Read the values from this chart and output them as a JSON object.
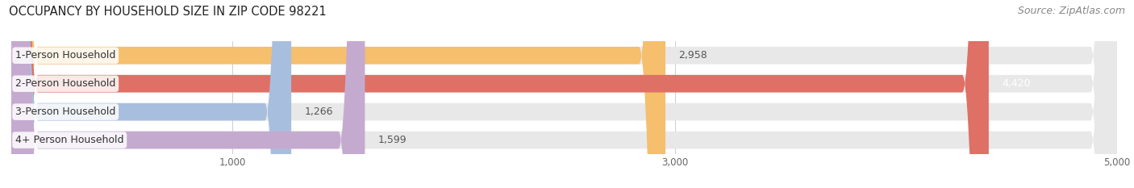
{
  "title": "OCCUPANCY BY HOUSEHOLD SIZE IN ZIP CODE 98221",
  "source": "Source: ZipAtlas.com",
  "categories": [
    "1-Person Household",
    "2-Person Household",
    "3-Person Household",
    "4+ Person Household"
  ],
  "values": [
    2958,
    4420,
    1266,
    1599
  ],
  "bar_colors": [
    "#f5bf6e",
    "#de7065",
    "#a8bede",
    "#c5aad0"
  ],
  "xlim": [
    0,
    5000
  ],
  "xticks": [
    1000,
    3000,
    5000
  ],
  "background_color": "#ffffff",
  "bar_background": "#e8e8e8",
  "title_fontsize": 10.5,
  "source_fontsize": 9,
  "bar_label_fontsize": 9,
  "category_fontsize": 9,
  "bar_height": 0.62,
  "figsize": [
    14.06,
    2.33
  ],
  "dpi": 100
}
